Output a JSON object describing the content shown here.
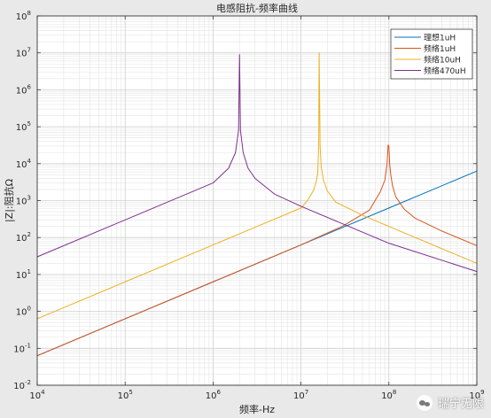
{
  "chart_data": {
    "type": "line",
    "title": "电感阻抗-频率曲线",
    "xlabel": "频率-Hz",
    "ylabel": "|Z|:阻抗Ω",
    "xscale": "log",
    "yscale": "log",
    "xlim": [
      10000,
      1000000000
    ],
    "ylim": [
      0.01,
      100000000
    ],
    "xticks": [
      10000,
      100000,
      1000000,
      10000000,
      100000000,
      1000000000
    ],
    "xtick_labels": [
      {
        "base": "10",
        "exp": "4"
      },
      {
        "base": "10",
        "exp": "5"
      },
      {
        "base": "10",
        "exp": "6"
      },
      {
        "base": "10",
        "exp": "7"
      },
      {
        "base": "10",
        "exp": "8"
      },
      {
        "base": "10",
        "exp": "9"
      }
    ],
    "yticks": [
      0.01,
      0.1,
      1,
      10,
      100,
      1000,
      10000,
      100000,
      1000000,
      10000000,
      100000000
    ],
    "ytick_labels": [
      {
        "base": "10",
        "exp": "-2"
      },
      {
        "base": "10",
        "exp": "-1"
      },
      {
        "base": "10",
        "exp": "0"
      },
      {
        "base": "10",
        "exp": "1"
      },
      {
        "base": "10",
        "exp": "2"
      },
      {
        "base": "10",
        "exp": "3"
      },
      {
        "base": "10",
        "exp": "4"
      },
      {
        "base": "10",
        "exp": "5"
      },
      {
        "base": "10",
        "exp": "6"
      },
      {
        "base": "10",
        "exp": "7"
      },
      {
        "base": "10",
        "exp": "8"
      }
    ],
    "grid": true,
    "minor_grid": true,
    "legend_position": "top-right",
    "series": [
      {
        "name": "理想1uH",
        "color": "#0072BD",
        "x": [
          10000,
          100000,
          1000000,
          10000000,
          100000000,
          1000000000
        ],
        "y": [
          0.063,
          0.63,
          6.3,
          63,
          630,
          6300
        ]
      },
      {
        "name": "频络1uH",
        "color": "#D95319",
        "x": [
          10000,
          100000,
          1000000,
          10000000,
          30000000,
          60000000,
          80000000,
          90000000,
          95000000,
          98000000,
          100000000,
          102000000,
          105000000,
          110000000,
          120000000,
          150000000,
          200000000,
          400000000,
          1000000000
        ],
        "y": [
          0.063,
          0.63,
          6.3,
          63,
          205,
          550,
          1750,
          3600,
          9000,
          32000,
          30000,
          10000,
          5000,
          2500,
          1250,
          580,
          330,
          150,
          60
        ]
      },
      {
        "name": "频络10uH",
        "color": "#EDB120",
        "x": [
          10000,
          100000,
          1000000,
          10000000,
          12000000,
          14000000,
          15000000,
          15500000,
          15900000,
          16100000,
          16500000,
          17000000,
          18000000,
          20000000,
          25000000,
          50000000,
          100000000,
          1000000000
        ],
        "y": [
          0.63,
          6.3,
          63,
          630,
          1040,
          1970,
          3500,
          5500,
          30000,
          10000000,
          30000,
          8000,
          3600,
          1800,
          900,
          400,
          200,
          20
        ]
      },
      {
        "name": "频络470uH",
        "color": "#7E2F8E",
        "x": [
          10000,
          100000,
          1000000,
          1500000,
          1800000,
          1950000,
          2000000,
          2050000,
          2200000,
          2500000,
          3000000,
          5000000,
          10000000,
          100000000,
          1000000000
        ],
        "y": [
          30,
          300,
          3000,
          7500,
          20000,
          80000,
          9000000,
          80000,
          20000,
          7500,
          4000,
          1500,
          700,
          70,
          12
        ]
      }
    ]
  }
}
